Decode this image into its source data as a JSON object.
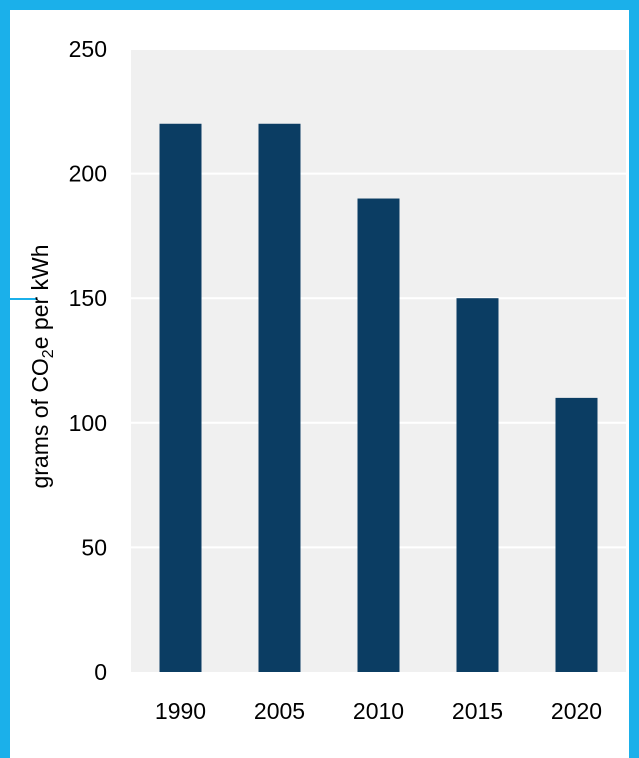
{
  "colors": {
    "frame": "#1BB0EA",
    "plot_background": "#F0F0F0",
    "gridline": "#FFFFFF",
    "bar": "#0B3D63",
    "text": "#000000"
  },
  "chart_data": {
    "type": "bar",
    "title": "",
    "xlabel": "",
    "ylabel": "grams of CO",
    "ylabel_subscript": "2",
    "ylabel_suffix": "e per kWh",
    "categories": [
      "1990",
      "2005",
      "2010",
      "2015",
      "2020"
    ],
    "values": [
      220,
      220,
      190,
      150,
      110
    ],
    "ylim": [
      0,
      250
    ],
    "yticks": [
      0,
      50,
      100,
      150,
      200,
      250
    ],
    "grid": true,
    "legend": "none"
  }
}
